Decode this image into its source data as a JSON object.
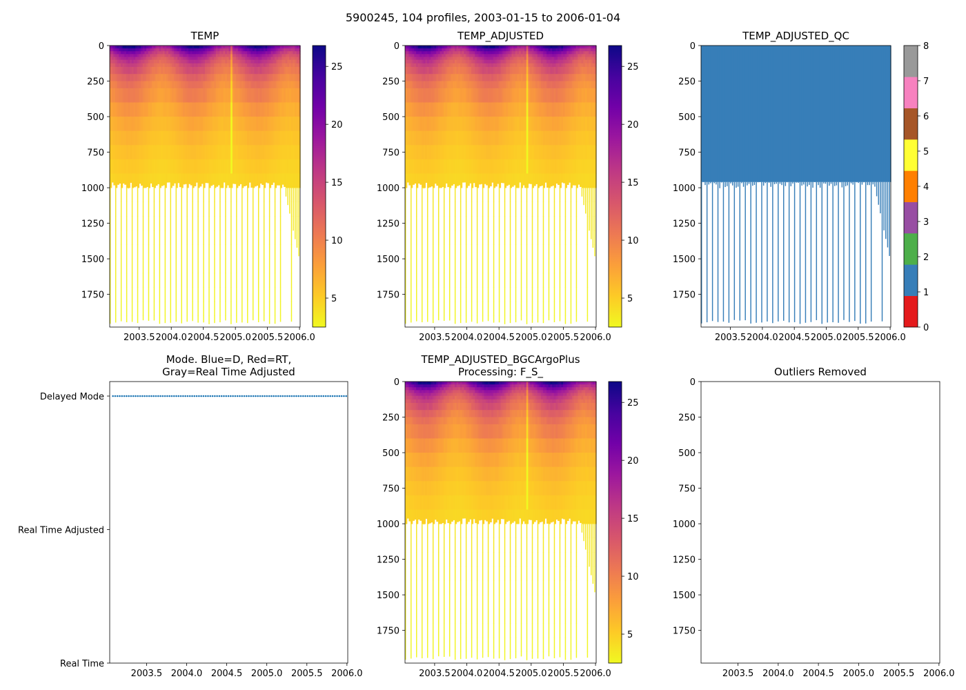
{
  "figure_title": "5900245, 104 profiles, 2003-01-15 to 2006-01-04",
  "colors": {
    "plasma_stops": [
      "#f0f921",
      "#fdca26",
      "#fb9f3a",
      "#ed7953",
      "#d8576b",
      "#bd3786",
      "#9c179e",
      "#7201a8",
      "#46039f",
      "#0d0887"
    ],
    "qc_colors": [
      "#e41a1c",
      "#377eb8",
      "#4daf4a",
      "#984ea3",
      "#ff7f00",
      "#ffff33",
      "#a65628",
      "#f781bf",
      "#999999"
    ],
    "mode_delayed": "#1f77b4"
  },
  "chart_data": [
    {
      "id": "temp",
      "type": "heatmap",
      "title": "TEMP",
      "xlim": [
        2003.04,
        2006.01
      ],
      "ylim": [
        1980,
        0
      ],
      "x_ticks": [
        "2003.5",
        "2004.0",
        "2004.5",
        "2005.0",
        "2005.5",
        "2006.0"
      ],
      "y_ticks": [
        "0",
        "250",
        "500",
        "750",
        "1000",
        "1250",
        "1500",
        "1750"
      ],
      "colorbar": {
        "range": [
          2.5,
          26.8
        ],
        "ticks": [
          "5",
          "10",
          "15",
          "20",
          "25"
        ],
        "cmap": "plasma_r"
      },
      "profiles": 104,
      "surface_temp_range": [
        16,
        26.5
      ],
      "deep_temp_range": [
        3,
        5
      ]
    },
    {
      "id": "temp_adjusted",
      "type": "heatmap",
      "title": "TEMP_ADJUSTED",
      "xlim": [
        2003.04,
        2006.01
      ],
      "ylim": [
        1980,
        0
      ],
      "x_ticks": [
        "2003.5",
        "2004.0",
        "2004.5",
        "2005.0",
        "2005.5",
        "2006.0"
      ],
      "y_ticks": [
        "0",
        "250",
        "500",
        "750",
        "1000",
        "1250",
        "1500",
        "1750"
      ],
      "colorbar": {
        "range": [
          2.5,
          26.8
        ],
        "ticks": [
          "5",
          "10",
          "15",
          "20",
          "25"
        ],
        "cmap": "plasma_r"
      },
      "profiles": 104
    },
    {
      "id": "temp_adjusted_qc",
      "type": "heatmap",
      "title": "TEMP_ADJUSTED_QC",
      "xlim": [
        2003.04,
        2006.01
      ],
      "ylim": [
        1980,
        0
      ],
      "x_ticks": [
        "2003.5",
        "2004.0",
        "2004.5",
        "2005.0",
        "2005.5",
        "2006.0"
      ],
      "y_ticks": [
        "0",
        "250",
        "500",
        "750",
        "1000",
        "1250",
        "1500",
        "1750"
      ],
      "colorbar": {
        "range": [
          0,
          8
        ],
        "ticks": [
          "0",
          "1",
          "2",
          "3",
          "4",
          "5",
          "6",
          "7",
          "8"
        ],
        "cmap": "qc"
      },
      "qc_value": 1
    },
    {
      "id": "mode",
      "type": "scatter",
      "title": "Mode. Blue=D, Red=RT,\nGray=Real Time Adjusted",
      "xlim": [
        2003.04,
        2006.01
      ],
      "x_ticks": [
        "2003.5",
        "2004.0",
        "2004.5",
        "2005.0",
        "2005.5",
        "2006.0"
      ],
      "y_categories": [
        "Real Time",
        "Real Time Adjusted",
        "Delayed Mode"
      ],
      "series": [
        {
          "name": "D",
          "y": "Delayed Mode",
          "count": 104
        }
      ]
    },
    {
      "id": "temp_adjusted_bgc",
      "type": "heatmap",
      "title": "TEMP_ADJUSTED_BGCArgoPlus\nProcessing: F_S_",
      "xlim": [
        2003.04,
        2006.01
      ],
      "ylim": [
        1980,
        0
      ],
      "x_ticks": [
        "2003.5",
        "2004.0",
        "2004.5",
        "2005.0",
        "2005.5",
        "2006.0"
      ],
      "y_ticks": [
        "0",
        "250",
        "500",
        "750",
        "1000",
        "1250",
        "1500",
        "1750"
      ],
      "colorbar": {
        "range": [
          2.5,
          26.8
        ],
        "ticks": [
          "5",
          "10",
          "15",
          "20",
          "25"
        ],
        "cmap": "plasma_r"
      },
      "profiles": 104
    },
    {
      "id": "outliers",
      "type": "scatter",
      "title": "Outliers Removed",
      "xlim": [
        2003.04,
        2006.01
      ],
      "ylim": [
        1980,
        0
      ],
      "x_ticks": [
        "2003.5",
        "2004.0",
        "2004.5",
        "2005.0",
        "2005.5",
        "2006.0"
      ],
      "y_ticks": [
        "0",
        "250",
        "500",
        "750",
        "1000",
        "1250",
        "1500",
        "1750"
      ],
      "series": []
    }
  ]
}
